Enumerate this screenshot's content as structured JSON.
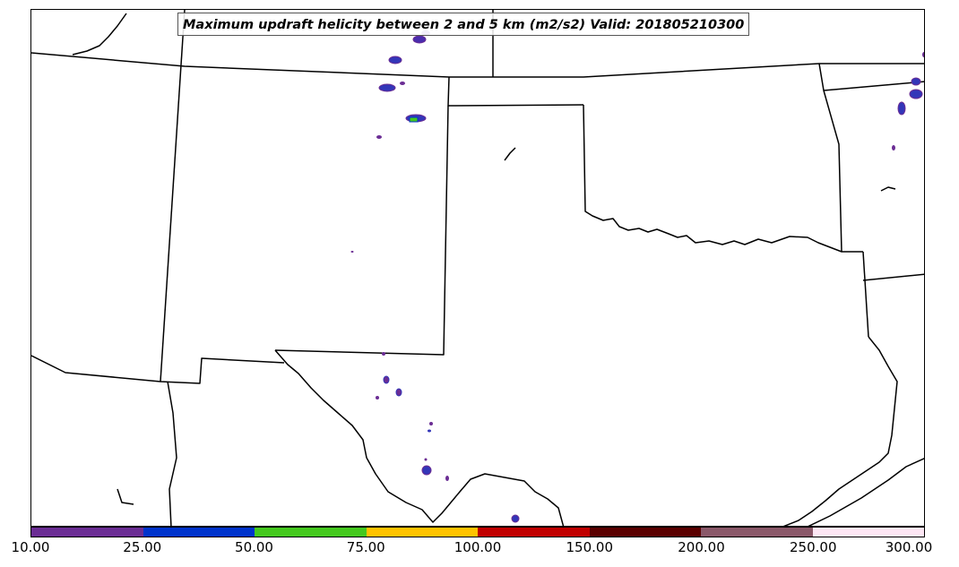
{
  "title": "Maximum updraft helicity between 2 and 5 km (m2/s2) Valid: 201805210300",
  "colorbar": {
    "ticks": [
      "10.00",
      "25.00",
      "50.00",
      "75.00",
      "100.00",
      "150.00",
      "200.00",
      "250.00",
      "300.00"
    ],
    "colors": [
      "#6b2d94",
      "#0033cc",
      "#44c81e",
      "#ffc300",
      "#c00000",
      "#5a0000",
      "#8a5869",
      "#fde6f4"
    ]
  },
  "map": {
    "region": "south-central-united-states",
    "features": [
      "state-borders",
      "coastlines",
      "updraft-helicity-cells"
    ]
  }
}
